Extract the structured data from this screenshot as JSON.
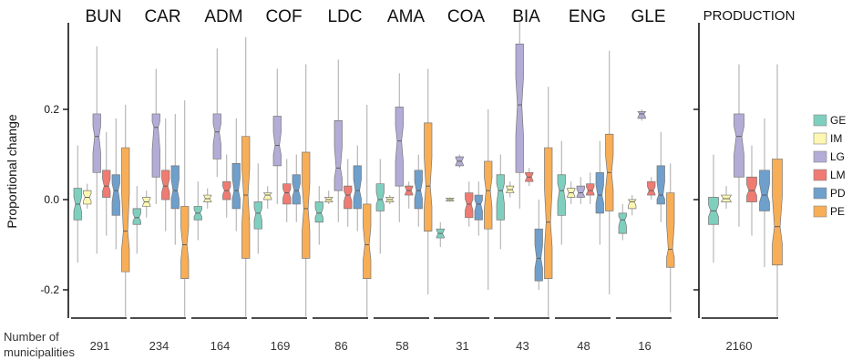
{
  "chart_data": {
    "type": "box",
    "ylabel": "Proportional change",
    "y_ticks": [
      0.2,
      0.0,
      -0.2
    ],
    "y_tick_labels": [
      "0.2",
      "0.0",
      "-0.2"
    ],
    "ylim": [
      -0.26,
      0.4
    ],
    "count_title_lines": [
      "Number of",
      "municipalities"
    ],
    "legend": {
      "placement": "right",
      "entries": [
        {
          "key": "GE",
          "label": "GE",
          "color": "#7fcfbf"
        },
        {
          "key": "IM",
          "label": "IM",
          "color": "#fdf7b2"
        },
        {
          "key": "LG",
          "label": "LG",
          "color": "#b3acd6"
        },
        {
          "key": "LM",
          "label": "LM",
          "color": "#f07b72"
        },
        {
          "key": "PD",
          "label": "PD",
          "color": "#6f9fcb"
        },
        {
          "key": "PE",
          "label": "PE",
          "color": "#f7ae57"
        }
      ]
    },
    "panels": [
      {
        "name": "BUN",
        "count": "291",
        "boxes": [
          {
            "series": "GE",
            "q1": -0.045,
            "median": -0.01,
            "q3": 0.025,
            "low": -0.14,
            "high": 0.12
          },
          {
            "series": "IM",
            "q1": -0.01,
            "median": 0.005,
            "q3": 0.02,
            "low": -0.02,
            "high": 0.035
          },
          {
            "series": "LG",
            "q1": 0.06,
            "median": 0.14,
            "q3": 0.19,
            "low": -0.12,
            "high": 0.34
          },
          {
            "series": "LM",
            "q1": 0.005,
            "median": 0.03,
            "q3": 0.065,
            "low": -0.08,
            "high": 0.15
          },
          {
            "series": "PD",
            "q1": -0.035,
            "median": 0.02,
            "q3": 0.055,
            "low": -0.11,
            "high": 0.18
          },
          {
            "series": "PE",
            "q1": -0.16,
            "median": -0.07,
            "q3": 0.115,
            "low": -0.26,
            "high": 0.21
          }
        ]
      },
      {
        "name": "CAR",
        "count": "234",
        "boxes": [
          {
            "series": "GE",
            "q1": -0.055,
            "median": -0.04,
            "q3": -0.02,
            "low": -0.12,
            "high": 0.03
          },
          {
            "series": "IM",
            "q1": -0.015,
            "median": -0.005,
            "q3": 0.005,
            "low": -0.04,
            "high": 0.02
          },
          {
            "series": "LG",
            "q1": 0.05,
            "median": 0.16,
            "q3": 0.19,
            "low": -0.01,
            "high": 0.29
          },
          {
            "series": "LM",
            "q1": 0.0,
            "median": 0.03,
            "q3": 0.065,
            "low": -0.07,
            "high": 0.18
          },
          {
            "series": "PD",
            "q1": -0.02,
            "median": 0.02,
            "q3": 0.075,
            "low": -0.1,
            "high": 0.19
          },
          {
            "series": "PE",
            "q1": -0.175,
            "median": -0.1,
            "q3": -0.015,
            "low": -0.26,
            "high": 0.22
          }
        ]
      },
      {
        "name": "ADM",
        "count": "164",
        "boxes": [
          {
            "series": "GE",
            "q1": -0.045,
            "median": -0.03,
            "q3": -0.015,
            "low": -0.09,
            "high": 0.04
          },
          {
            "series": "IM",
            "q1": -0.005,
            "median": 0.002,
            "q3": 0.01,
            "low": -0.02,
            "high": 0.025
          },
          {
            "series": "LG",
            "q1": 0.09,
            "median": 0.15,
            "q3": 0.19,
            "low": 0.05,
            "high": 0.335
          },
          {
            "series": "LM",
            "q1": 0.0,
            "median": 0.02,
            "q3": 0.04,
            "low": -0.04,
            "high": 0.1
          },
          {
            "series": "PD",
            "q1": -0.02,
            "median": 0.02,
            "q3": 0.08,
            "low": -0.07,
            "high": 0.18
          },
          {
            "series": "PE",
            "q1": -0.13,
            "median": 0.01,
            "q3": 0.14,
            "low": -0.26,
            "high": 0.36
          }
        ]
      },
      {
        "name": "COF",
        "count": "169",
        "boxes": [
          {
            "series": "GE",
            "q1": -0.065,
            "median": -0.03,
            "q3": -0.005,
            "low": -0.12,
            "high": 0.08
          },
          {
            "series": "IM",
            "q1": 0.0,
            "median": 0.01,
            "q3": 0.015,
            "low": -0.02,
            "high": 0.03
          },
          {
            "series": "LG",
            "q1": 0.075,
            "median": 0.12,
            "q3": 0.185,
            "low": -0.01,
            "high": 0.29
          },
          {
            "series": "LM",
            "q1": -0.01,
            "median": 0.015,
            "q3": 0.035,
            "low": -0.05,
            "high": 0.09
          },
          {
            "series": "PD",
            "q1": -0.01,
            "median": 0.02,
            "q3": 0.055,
            "low": -0.05,
            "high": 0.1
          },
          {
            "series": "PE",
            "q1": -0.13,
            "median": -0.02,
            "q3": 0.105,
            "low": -0.26,
            "high": 0.3
          }
        ]
      },
      {
        "name": "LDC",
        "count": "86",
        "boxes": [
          {
            "series": "GE",
            "q1": -0.05,
            "median": -0.03,
            "q3": -0.005,
            "low": -0.1,
            "high": 0.03
          },
          {
            "series": "IM",
            "q1": -0.005,
            "median": 0.0,
            "q3": 0.005,
            "low": -0.01,
            "high": 0.02
          },
          {
            "series": "LG",
            "q1": 0.02,
            "median": 0.07,
            "q3": 0.175,
            "low": -0.05,
            "high": 0.31
          },
          {
            "series": "LM",
            "q1": -0.02,
            "median": 0.01,
            "q3": 0.03,
            "low": -0.06,
            "high": 0.09
          },
          {
            "series": "PD",
            "q1": -0.02,
            "median": 0.02,
            "q3": 0.075,
            "low": -0.07,
            "high": 0.12
          },
          {
            "series": "PE",
            "q1": -0.175,
            "median": -0.1,
            "q3": -0.01,
            "low": -0.26,
            "high": 0.21
          }
        ]
      },
      {
        "name": "AMA",
        "count": "58",
        "boxes": [
          {
            "series": "GE",
            "q1": -0.025,
            "median": 0.0,
            "q3": 0.035,
            "low": -0.12,
            "high": 0.09
          },
          {
            "series": "IM",
            "q1": -0.005,
            "median": 0.0,
            "q3": 0.005,
            "low": -0.01,
            "high": 0.01
          },
          {
            "series": "LG",
            "q1": 0.03,
            "median": 0.13,
            "q3": 0.205,
            "low": -0.05,
            "high": 0.28
          },
          {
            "series": "LM",
            "q1": 0.01,
            "median": 0.02,
            "q3": 0.03,
            "low": -0.02,
            "high": 0.04
          },
          {
            "series": "PD",
            "q1": -0.02,
            "median": 0.02,
            "q3": 0.065,
            "low": -0.06,
            "high": 0.1
          },
          {
            "series": "PE",
            "q1": -0.07,
            "median": 0.03,
            "q3": 0.17,
            "low": -0.21,
            "high": 0.29
          }
        ]
      },
      {
        "name": "COA",
        "count": "31",
        "boxes": [
          {
            "series": "GE",
            "q1": -0.085,
            "median": -0.075,
            "q3": -0.065,
            "low": -0.105,
            "high": -0.05
          },
          {
            "series": "IM",
            "q1": -0.003,
            "median": 0.0,
            "q3": 0.003,
            "low": -0.005,
            "high": 0.005
          },
          {
            "series": "LG",
            "q1": 0.075,
            "median": 0.085,
            "q3": 0.095,
            "low": 0.07,
            "high": 0.1
          },
          {
            "series": "LM",
            "q1": -0.04,
            "median": -0.01,
            "q3": 0.015,
            "low": -0.06,
            "high": 0.04
          },
          {
            "series": "PD",
            "q1": -0.045,
            "median": -0.01,
            "q3": 0.01,
            "low": -0.08,
            "high": 0.04
          },
          {
            "series": "PE",
            "q1": -0.065,
            "median": 0.02,
            "q3": 0.085,
            "low": -0.2,
            "high": 0.2
          }
        ]
      },
      {
        "name": "BIA",
        "count": "43",
        "boxes": [
          {
            "series": "GE",
            "q1": -0.045,
            "median": 0.02,
            "q3": 0.055,
            "low": -0.11,
            "high": 0.1
          },
          {
            "series": "IM",
            "q1": 0.015,
            "median": 0.022,
            "q3": 0.03,
            "low": 0.005,
            "high": 0.04
          },
          {
            "series": "LG",
            "q1": 0.06,
            "median": 0.21,
            "q3": 0.345,
            "low": -0.02,
            "high": 0.395
          },
          {
            "series": "LM",
            "q1": 0.04,
            "median": 0.05,
            "q3": 0.06,
            "low": 0.03,
            "high": 0.07
          },
          {
            "series": "PD",
            "q1": -0.18,
            "median": -0.13,
            "q3": -0.065,
            "low": -0.2,
            "high": 0.0
          },
          {
            "series": "PE",
            "q1": -0.175,
            "median": -0.05,
            "q3": 0.115,
            "low": -0.26,
            "high": 0.25
          }
        ]
      },
      {
        "name": "ENG",
        "count": "48",
        "boxes": [
          {
            "series": "GE",
            "q1": -0.035,
            "median": 0.02,
            "q3": 0.055,
            "low": -0.1,
            "high": 0.13
          },
          {
            "series": "IM",
            "q1": 0.005,
            "median": 0.015,
            "q3": 0.025,
            "low": -0.01,
            "high": 0.04
          },
          {
            "series": "LG",
            "q1": 0.005,
            "median": 0.015,
            "q3": 0.03,
            "low": -0.01,
            "high": 0.05
          },
          {
            "series": "LM",
            "q1": 0.01,
            "median": 0.02,
            "q3": 0.035,
            "low": -0.01,
            "high": 0.06
          },
          {
            "series": "PD",
            "q1": -0.03,
            "median": 0.01,
            "q3": 0.06,
            "low": -0.1,
            "high": 0.13
          },
          {
            "series": "PE",
            "q1": -0.025,
            "median": 0.06,
            "q3": 0.145,
            "low": -0.21,
            "high": 0.33
          }
        ]
      },
      {
        "name": "GLE",
        "count": "16",
        "boxes": [
          {
            "series": "GE",
            "q1": -0.075,
            "median": -0.045,
            "q3": -0.03,
            "low": -0.09,
            "high": -0.01
          },
          {
            "series": "IM",
            "q1": -0.02,
            "median": -0.005,
            "q3": 0.0,
            "low": -0.035,
            "high": 0.01
          },
          {
            "series": "LG",
            "q1": 0.18,
            "median": 0.19,
            "q3": 0.195,
            "low": 0.175,
            "high": 0.2
          },
          {
            "series": "LM",
            "q1": 0.01,
            "median": 0.02,
            "q3": 0.04,
            "low": 0.0,
            "high": 0.05
          },
          {
            "series": "PD",
            "q1": -0.01,
            "median": 0.01,
            "q3": 0.075,
            "low": -0.05,
            "high": 0.15
          },
          {
            "series": "PE",
            "q1": -0.15,
            "median": -0.11,
            "q3": 0.015,
            "low": -0.25,
            "high": 0.08
          }
        ]
      },
      {
        "name": "PRODUCTION",
        "count": "2160",
        "boxes": [
          {
            "series": "GE",
            "q1": -0.055,
            "median": -0.025,
            "q3": 0.005,
            "low": -0.14,
            "high": 0.1
          },
          {
            "series": "IM",
            "q1": -0.005,
            "median": 0.002,
            "q3": 0.01,
            "low": -0.02,
            "high": 0.03
          },
          {
            "series": "LG",
            "q1": 0.05,
            "median": 0.14,
            "q3": 0.19,
            "low": -0.06,
            "high": 0.3
          },
          {
            "series": "LM",
            "q1": -0.005,
            "median": 0.02,
            "q3": 0.05,
            "low": -0.08,
            "high": 0.12
          },
          {
            "series": "PD",
            "q1": -0.025,
            "median": 0.01,
            "q3": 0.065,
            "low": -0.15,
            "high": 0.18
          },
          {
            "series": "PE",
            "q1": -0.145,
            "median": -0.06,
            "q3": 0.09,
            "low": -0.26,
            "high": 0.3
          }
        ]
      }
    ]
  }
}
